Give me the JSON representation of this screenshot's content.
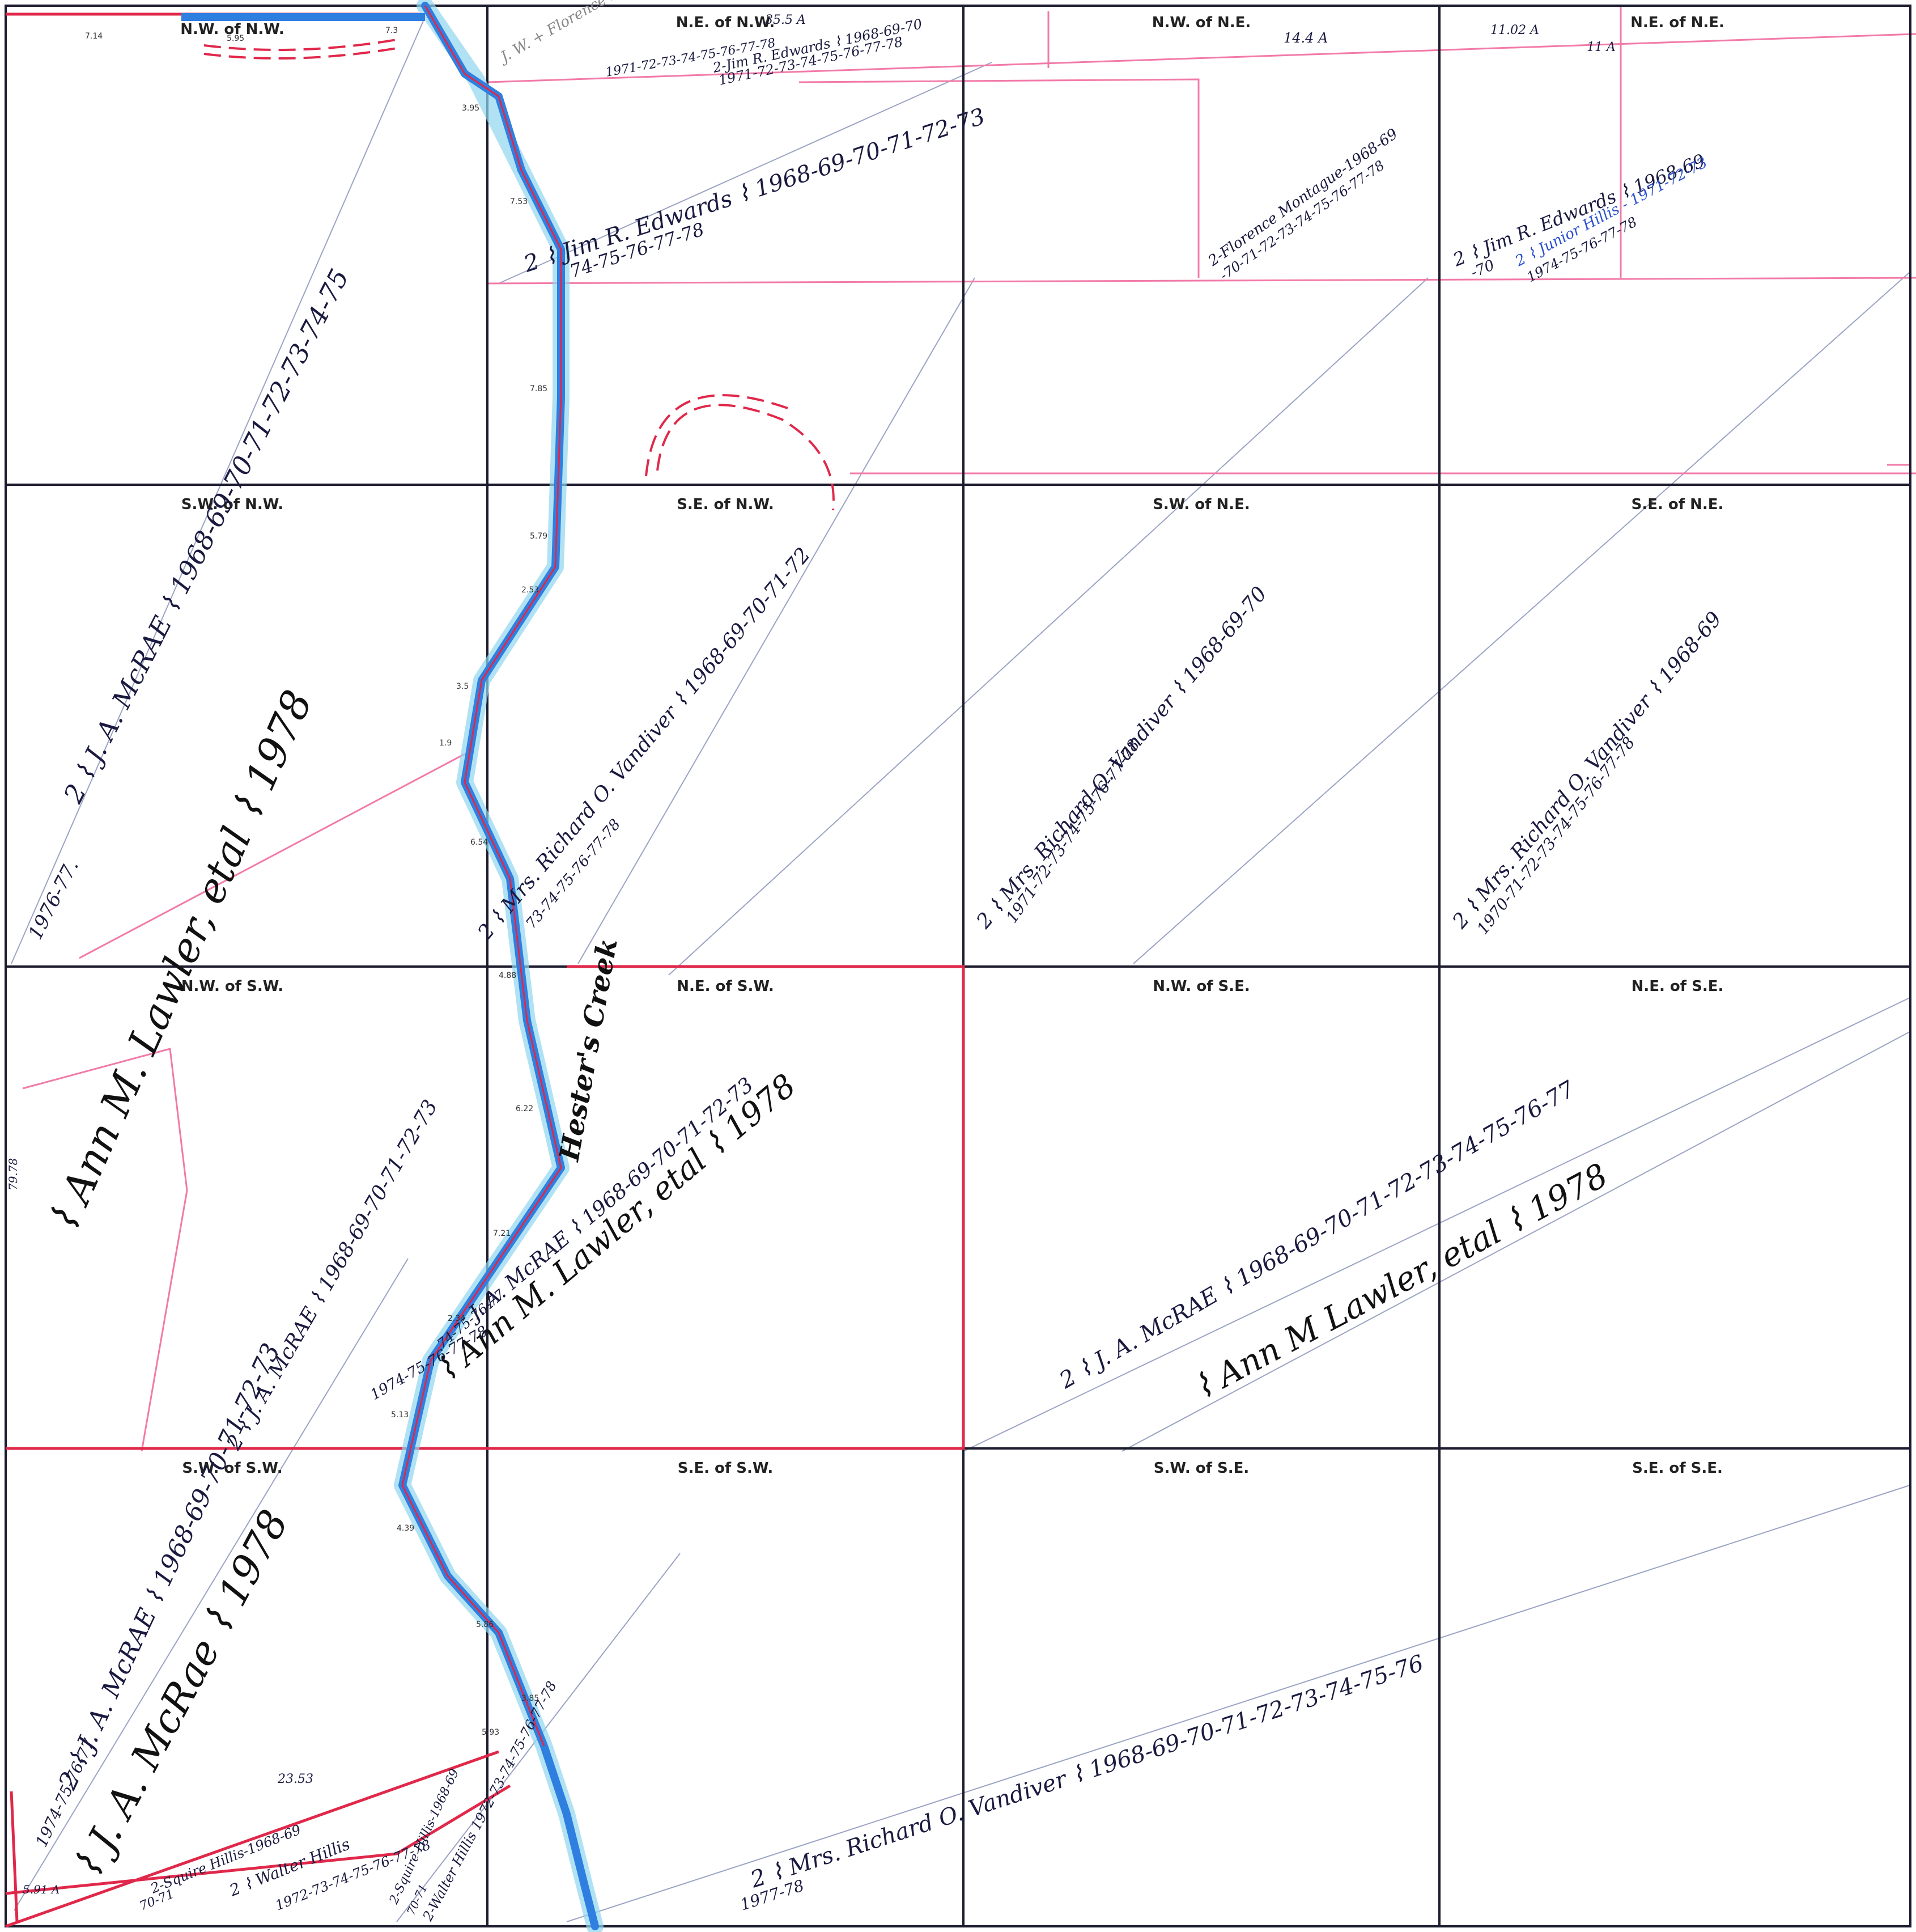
{
  "quarter_labels": {
    "nw_nw": "N.W. of N.W.",
    "ne_nw": "N.E. of N.W.",
    "nw_ne": "N.W. of N.E.",
    "ne_ne": "N.E. of N.E.",
    "sw_nw": "S.W. of N.W.",
    "se_nw": "S.E. of N.W.",
    "sw_ne": "S.W. of N.E.",
    "se_ne": "S.E. of N.E.",
    "nw_sw": "N.W. of S.W.",
    "ne_sw": "N.E. of S.W.",
    "nw_se": "N.W. of S.E.",
    "ne_se": "N.E. of S.E.",
    "sw_sw": "S.W. of S.W.",
    "se_sw": "S.E. of S.W.",
    "sw_se": "S.W. of S.E.",
    "se_se": "S.E. of S.E."
  },
  "creek_label": "Hester's Creek",
  "acreages": {
    "ne_nw": "35.5 A",
    "nw_ne": "14.4 A",
    "ne_ne_a": "11.02 A",
    "ne_ne_b": "11 A",
    "bottom_a": "23.53",
    "bottom_b": "5.91 A",
    "edge_left": "79.78"
  },
  "segment_lengths": [
    "7.14",
    "5.95",
    "7.3",
    "3.95",
    "7.53",
    "7.85",
    "5.79",
    "2.53",
    "3.5",
    "1.9",
    "6.54",
    "4.88",
    "6.22",
    "7.21",
    "2.34",
    "5.13",
    "4.39",
    "5.86",
    "3.85",
    "5.93"
  ],
  "owners": {
    "mcrae_nw": "2 ⌇ J. A. McRAE ⌇ 1968-69-70-71-72-73-74-75",
    "mcrae_nw_years": "1976-77.",
    "lawler_nw": "⌇ Ann M. Lawler, etal ⌇ 1978",
    "edwards_top": "2-Jim R. Edwards ⌇ 1968-69-70",
    "edwards_top_years": "1971-72-73-74-75-76-77-78",
    "montague_top": "J. W. + Florence Montague",
    "montague_top_years": "1971-72-73-74-75-76-77-78",
    "edwards_ne_nw": "2 ⌇ Jim R. Edwards ⌇ 1968-69-70-71-72-73",
    "edwards_ne_nw_years": "74-75-76-77-78",
    "montague_nw_ne": "2-Florence Montague-1968-69",
    "montague_nw_ne_years": "-70-71-72-73-74-75-76-77-78",
    "edwards_ne_ne": "2 ⌇ Jim R. Edwards ⌇ 1968-69",
    "edwards_ne_ne_years": "-70",
    "hillis_junior": "2 ⌇ Junior Hillis - 1971-72-73",
    "hillis_junior_years": "1974-75-76-77-78",
    "vandiver_se_nw": "2 ⌇ Mrs. Richard O. Vandiver ⌇ 1968-69-70-71-72",
    "vandiver_se_nw_years": "73-74-75-76-77-78",
    "vandiver_sw_ne": "2 ⌇ Mrs. Richard O. Vandiver ⌇ 1968-69-70",
    "vandiver_sw_ne_years": "1971-72-73-74-75-76-77-78",
    "vandiver_se_ne": "2 ⌇ Mrs. Richard O. Vandiver ⌇ 1968-69",
    "vandiver_se_ne_years": "1970-71-72-73-74-75-76-77-78",
    "mcrae_ne_sw": "J. A. McRAE ⌇ 1968-69-70-71-72-73",
    "mcrae_ne_sw_years": "74-75-76-77",
    "lawler_ne_sw": "⌇ Ann M. Lawler, etal ⌇ 1978",
    "mcrae_nw_sw": "2 ⌇ J. A. McRAE ⌇ 1968-69-70-71-72-73",
    "mcrae_nw_sw_years": "1974-75-76-77-78",
    "mcrae_se": "2 ⌇ J. A. McRAE ⌇ 1968-69-70-71-72-73-74-75-76-77",
    "lawler_se": "⌇ Ann M Lawler, etal ⌇ 1978",
    "mcrae_sw_sw": "2 ⌇ J. A. McRAE ⌇ 1968-69-70-71-72-73",
    "mcrae_sw_sw_years": "1974-75-76-77.",
    "mcrae_sw_sw_1978": "⌇ J. A. McRae ⌇ 1978",
    "vandiver_bottom": "2 ⌇ Mrs. Richard O. Vandiver ⌇ 1968-69-70-71-72-73-74-75-76",
    "vandiver_bottom_years": "1977-78",
    "squire_hillis_a": "2-Squire Hillis-1968-69",
    "squire_hillis_a_years": "70-71",
    "walter_hillis_a": "2 ⌇ Walter Hillis",
    "walter_hillis_a_years": "1972-73-74-75-76-77-78",
    "squire_hillis_b": "2-Squire Hillis-1968-69",
    "squire_hillis_b_years": "70-71",
    "walter_hillis_b": "2-Walter Hillis 1972-73-74-75-76-77-78"
  },
  "colors": {
    "grid": "#1c1c2e",
    "boundary_red": "#e0284a",
    "pink": "#f27aa8",
    "creek_blue": "#2f7fe0",
    "creek_light": "#8fd6ef",
    "ink": "#1a1a40"
  }
}
